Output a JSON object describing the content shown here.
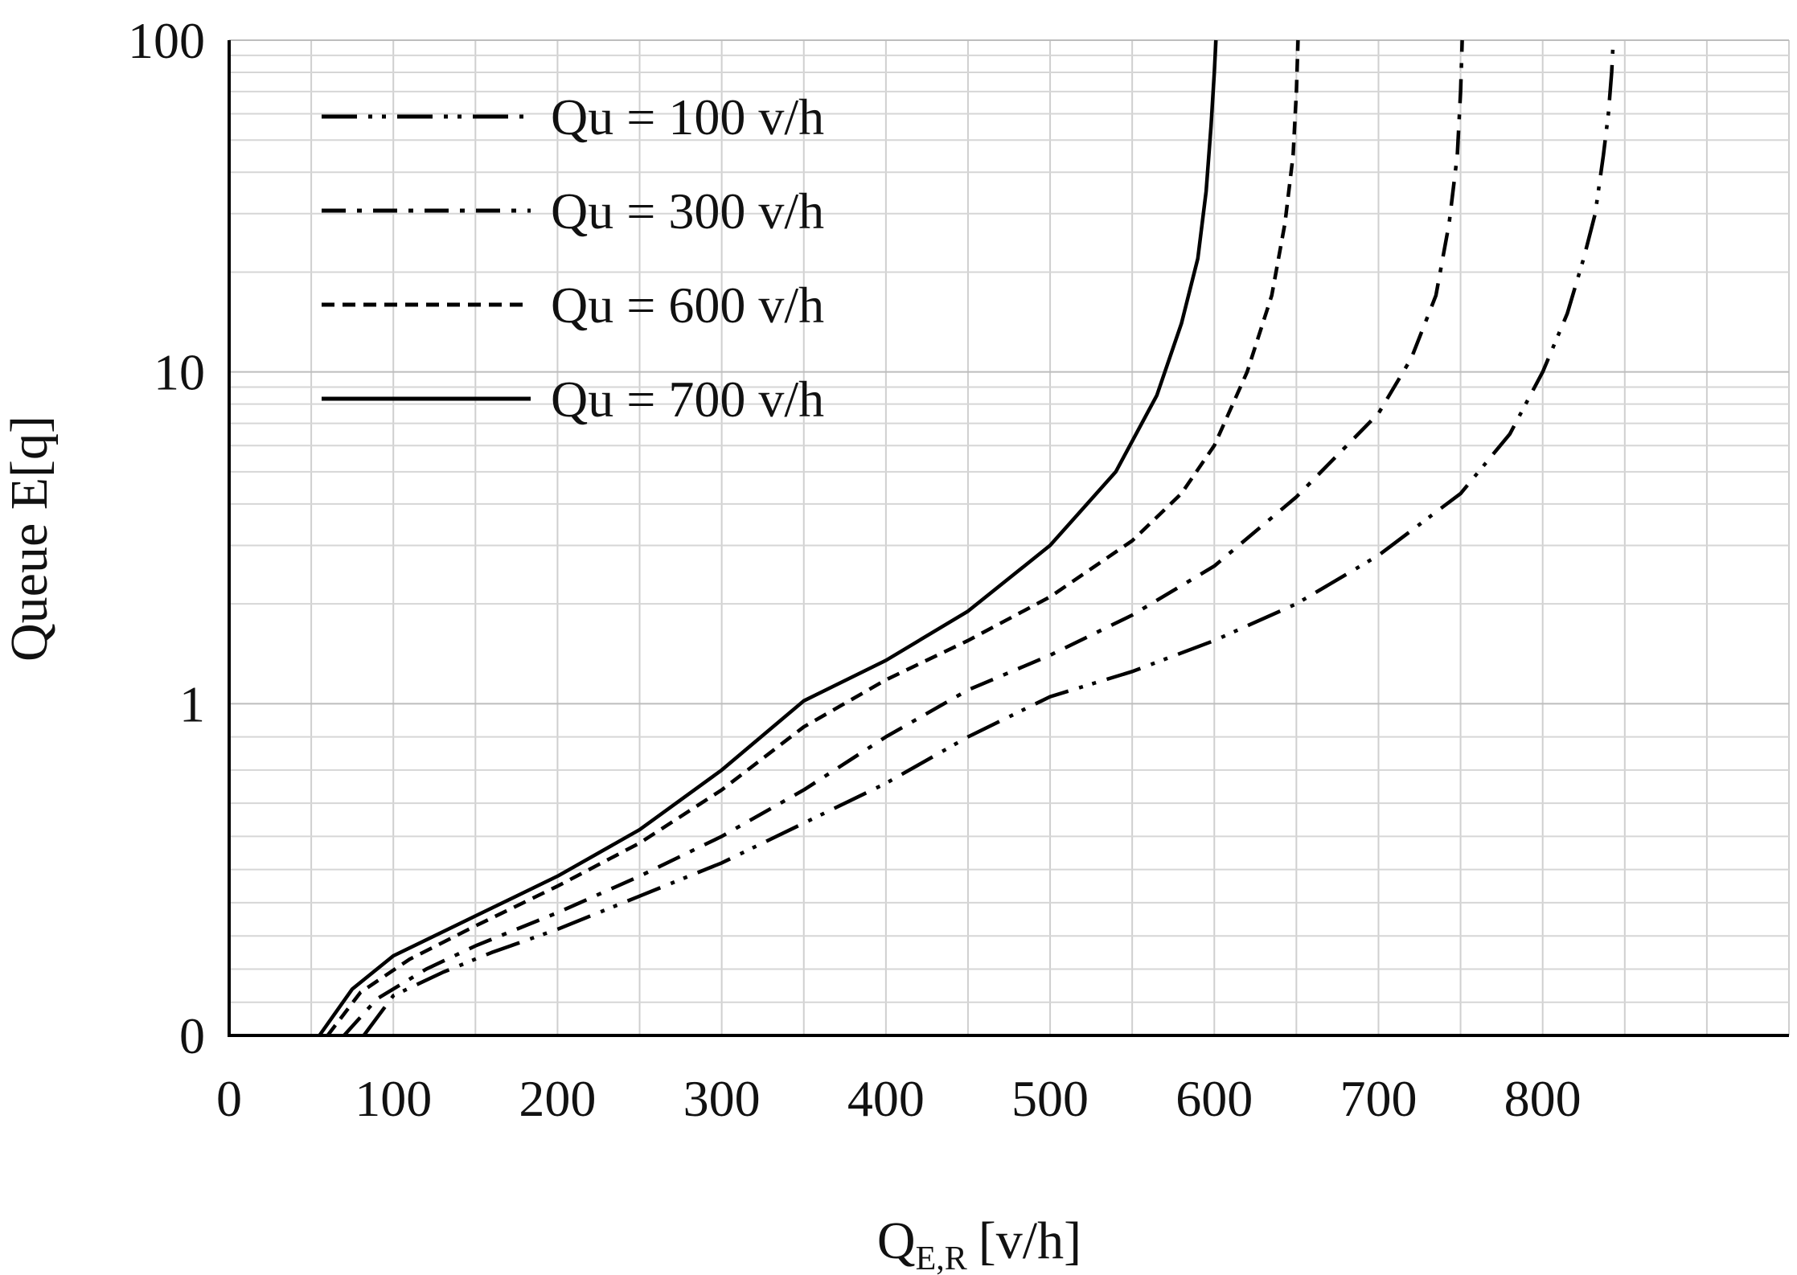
{
  "chart_data": {
    "type": "line",
    "ylabel": "Queue E[q]",
    "xlabel": {
      "main": "Q",
      "sub": "E,R",
      "unit": "[v/h]"
    },
    "xlim": [
      0,
      950
    ],
    "ylim": [
      0,
      100
    ],
    "y_scale": "log with 0 at base",
    "x_ticks": [
      "0",
      "100",
      "200",
      "300",
      "400",
      "500",
      "600",
      "700",
      "800"
    ],
    "y_ticks": [
      "0",
      "1",
      "10",
      "100"
    ],
    "grid": true,
    "legend_position": "top-left",
    "series": [
      {
        "name": "Qu  = 100 v/h",
        "dash": "long-dash-dot-dot",
        "x": [
          82,
          100,
          130,
          160,
          200,
          250,
          300,
          350,
          400,
          450,
          500,
          550,
          600,
          650,
          700,
          750,
          780,
          800,
          815,
          825,
          832,
          837,
          840,
          842,
          843
        ],
        "y": [
          0,
          0.12,
          0.19,
          0.25,
          0.32,
          0.42,
          0.52,
          0.64,
          0.76,
          0.9,
          1.05,
          1.25,
          1.55,
          2.0,
          2.8,
          4.3,
          6.5,
          10,
          15,
          22,
          30,
          45,
          60,
          80,
          100
        ]
      },
      {
        "name": "Qu  = 300 v/h",
        "dash": "dash-dot",
        "x": [
          70,
          90,
          120,
          150,
          200,
          250,
          300,
          350,
          400,
          450,
          500,
          550,
          600,
          650,
          700,
          720,
          735,
          743,
          748,
          750,
          751
        ],
        "y": [
          0,
          0.11,
          0.2,
          0.27,
          0.37,
          0.48,
          0.6,
          0.74,
          0.9,
          1.1,
          1.4,
          1.85,
          2.6,
          4.2,
          7.5,
          11,
          17,
          28,
          45,
          70,
          100
        ]
      },
      {
        "name": "Qu  = 600 v/h",
        "dash": "dashed",
        "x": [
          60,
          80,
          110,
          150,
          200,
          250,
          300,
          350,
          400,
          450,
          500,
          550,
          580,
          600,
          620,
          635,
          643,
          648,
          650,
          651
        ],
        "y": [
          0,
          0.13,
          0.23,
          0.33,
          0.45,
          0.58,
          0.74,
          0.93,
          1.18,
          1.55,
          2.1,
          3.1,
          4.3,
          6.0,
          10,
          17,
          28,
          45,
          70,
          100
        ]
      },
      {
        "name": "Qu  = 700 v/h",
        "dash": "solid",
        "x": [
          55,
          75,
          100,
          150,
          200,
          250,
          300,
          350,
          400,
          450,
          500,
          540,
          565,
          580,
          590,
          595,
          598,
          600,
          601
        ],
        "y": [
          0,
          0.14,
          0.24,
          0.36,
          0.48,
          0.62,
          0.8,
          1.02,
          1.35,
          1.9,
          3.0,
          5.0,
          8.5,
          14,
          22,
          35,
          55,
          80,
          100
        ]
      }
    ]
  }
}
